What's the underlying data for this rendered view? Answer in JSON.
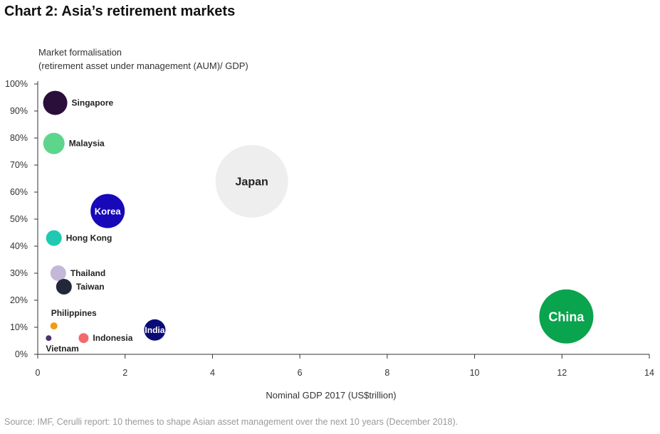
{
  "title": "Chart 2: Asia’s retirement markets",
  "source": "Source: IMF, Cerulli report: 10 themes to shape Asian asset management over the next 10 years (December 2018).",
  "chart_data": {
    "type": "scatter",
    "title": "Chart 2: Asia’s retirement markets",
    "ylabel_lines": [
      "Market formalisation",
      "(retirement asset under management (AUM)/ GDP)"
    ],
    "xlabel": "Nominal GDP 2017 (US$trillion)",
    "xlim": [
      0,
      14
    ],
    "ylim": [
      0,
      100
    ],
    "x_ticks": [
      0,
      2,
      4,
      6,
      8,
      10,
      12,
      14
    ],
    "y_ticks": [
      0,
      10,
      20,
      30,
      40,
      50,
      60,
      70,
      80,
      90,
      100
    ],
    "y_tick_suffix": "%",
    "grid": false,
    "points": [
      {
        "name": "Singapore",
        "x": 0.4,
        "y": 93,
        "size": 17,
        "color": "#2a0f3a",
        "label_position": "right",
        "label_color": "#222222"
      },
      {
        "name": "Malaysia",
        "x": 0.37,
        "y": 78,
        "size": 15,
        "color": "#5dd68b",
        "label_position": "right",
        "label_color": "#222222"
      },
      {
        "name": "Japan",
        "x": 4.9,
        "y": 64,
        "size": 51,
        "color": "#eeeeee",
        "label_position": "center",
        "label_color": "#222222"
      },
      {
        "name": "Korea",
        "x": 1.6,
        "y": 53,
        "size": 24,
        "color": "#1708b8",
        "label_position": "center",
        "label_color": "#ffffff"
      },
      {
        "name": "Hong Kong",
        "x": 0.37,
        "y": 43,
        "size": 11,
        "color": "#1fc9b2",
        "label_position": "right",
        "label_color": "#222222"
      },
      {
        "name": "Thailand",
        "x": 0.47,
        "y": 30,
        "size": 11,
        "color": "#c3b8d8",
        "label_position": "right",
        "label_color": "#222222"
      },
      {
        "name": "Taiwan",
        "x": 0.6,
        "y": 25,
        "size": 11,
        "color": "#22283a",
        "label_position": "right",
        "label_color": "#222222"
      },
      {
        "name": "Philippines",
        "x": 0.37,
        "y": 10.5,
        "size": 5,
        "color": "#f39a12",
        "label_position": "above",
        "label_color": "#222222"
      },
      {
        "name": "Indonesia",
        "x": 1.05,
        "y": 6,
        "size": 7,
        "color": "#f36a6a",
        "label_position": "right",
        "label_color": "#222222"
      },
      {
        "name": "India",
        "x": 2.68,
        "y": 9,
        "size": 15,
        "color": "#0b0b78",
        "label_position": "center",
        "label_color": "#ffffff"
      },
      {
        "name": "Vietnam",
        "x": 0.25,
        "y": 6,
        "size": 4,
        "color": "#4b3270",
        "label_position": "below",
        "label_color": "#222222"
      },
      {
        "name": "China",
        "x": 12.1,
        "y": 14,
        "size": 38,
        "color": "#0aa34e",
        "label_position": "center",
        "label_color": "#ffffff"
      }
    ]
  }
}
